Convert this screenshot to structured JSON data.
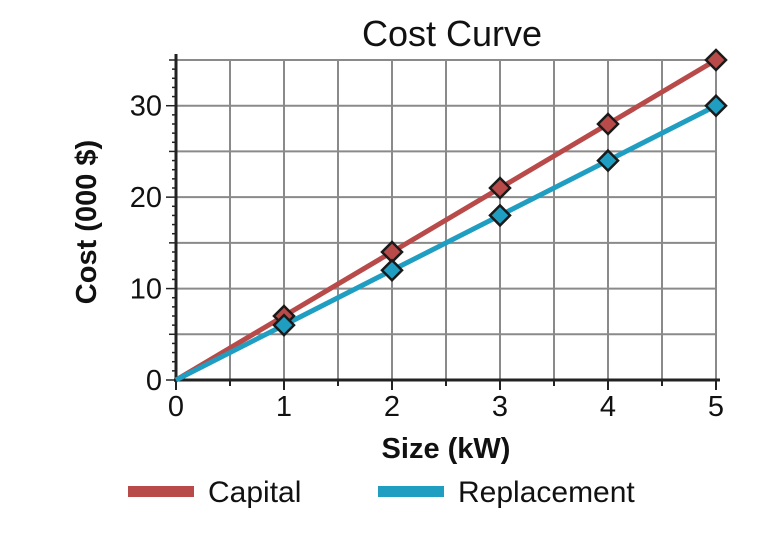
{
  "chart_data": {
    "type": "line",
    "title": "Cost Curve",
    "xlabel": "Size (kW)",
    "ylabel": "Cost (000 $)",
    "x": [
      0,
      1,
      2,
      3,
      4,
      5
    ],
    "xlim": [
      0,
      5
    ],
    "ylim": [
      0,
      35
    ],
    "xticks": [
      "0",
      "1",
      "2",
      "3",
      "4",
      "5"
    ],
    "yticks": [
      "0",
      "10",
      "20",
      "30"
    ],
    "grid": true,
    "legend_position": "bottom",
    "series": [
      {
        "name": "Capital",
        "color": "#b94a4a",
        "marker_color": "#b94a4a",
        "values": [
          0,
          7,
          14,
          21,
          28,
          35
        ]
      },
      {
        "name": "Replacement",
        "color": "#1f9ec2",
        "marker_color": "#1f9ec2",
        "values": [
          0,
          6,
          12,
          18,
          24,
          30
        ]
      }
    ]
  }
}
